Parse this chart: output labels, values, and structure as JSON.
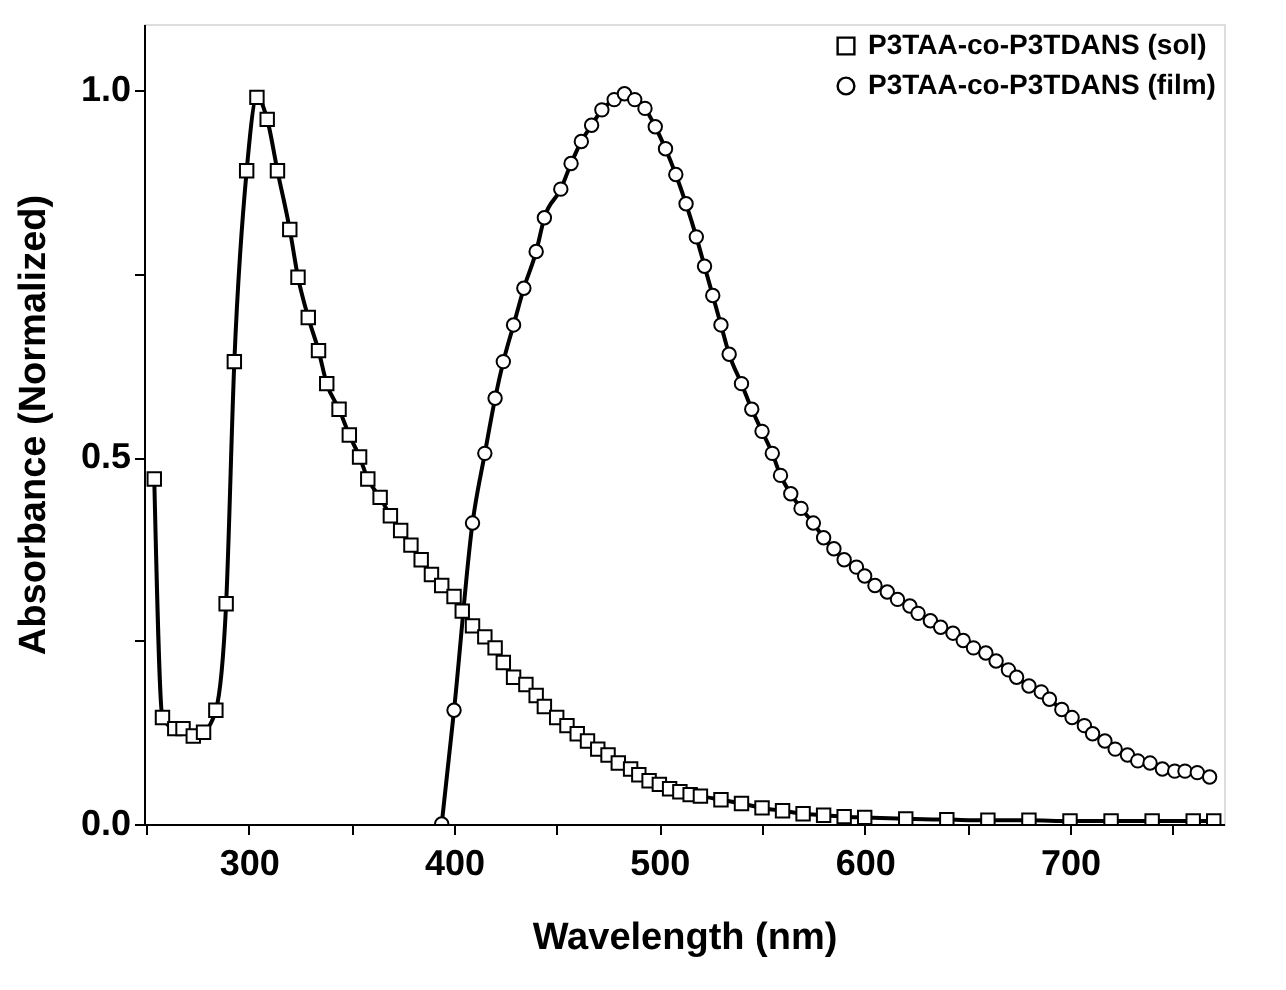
{
  "chart_data": {
    "type": "line",
    "xlabel": "Wavelength (nm)",
    "ylabel": "Absorbance (Normalized)",
    "xlim": [
      249,
      775
    ],
    "ylim": [
      0,
      1.09
    ],
    "xticks": [
      {
        "value": 250,
        "label": null
      },
      300,
      {
        "value": 350,
        "label": null
      },
      400,
      {
        "value": 450,
        "label": null
      },
      500,
      {
        "value": 550,
        "label": null
      },
      600,
      {
        "value": 650,
        "label": null
      },
      700,
      {
        "value": 750,
        "label": null
      }
    ],
    "yticks": [
      {
        "value": 0,
        "label": "0.0"
      },
      {
        "value": 0.25,
        "label": null
      },
      {
        "value": 0.5,
        "label": "0.5"
      },
      {
        "value": 0.75,
        "label": null
      },
      {
        "value": 1,
        "label": "1.0"
      }
    ],
    "grid": false,
    "legend": "top right",
    "series": [
      {
        "name": "P3TAA-co-P3TDANS (sol)",
        "color": "#000000",
        "marker": "square",
        "x": [
          254,
          258,
          264,
          268,
          273,
          278,
          284,
          289,
          293,
          299,
          304,
          309,
          314,
          320,
          324,
          329,
          334,
          338,
          344,
          349,
          354,
          358,
          364,
          369,
          374,
          379,
          384,
          389,
          394,
          400,
          404,
          409,
          415,
          420,
          424,
          429,
          435,
          440,
          444,
          450,
          455,
          460,
          465,
          470,
          475,
          480,
          486,
          490,
          495,
          500,
          505,
          510,
          515,
          520,
          530,
          540,
          550,
          560,
          570,
          580,
          590,
          600,
          620,
          640,
          660,
          680,
          700,
          720,
          740,
          760,
          770
        ],
        "values": [
          0.47,
          0.145,
          0.13,
          0.13,
          0.12,
          0.125,
          0.155,
          0.3,
          0.63,
          0.89,
          0.99,
          0.96,
          0.89,
          0.81,
          0.745,
          0.69,
          0.645,
          0.6,
          0.565,
          0.53,
          0.5,
          0.47,
          0.445,
          0.42,
          0.4,
          0.38,
          0.36,
          0.34,
          0.325,
          0.31,
          0.29,
          0.27,
          0.255,
          0.24,
          0.22,
          0.2,
          0.19,
          0.175,
          0.16,
          0.145,
          0.134,
          0.123,
          0.113,
          0.102,
          0.094,
          0.083,
          0.075,
          0.067,
          0.059,
          0.054,
          0.048,
          0.044,
          0.04,
          0.038,
          0.033,
          0.028,
          0.022,
          0.018,
          0.014,
          0.012,
          0.01,
          0.009,
          0.007,
          0.006,
          0.005,
          0.005,
          0.004,
          0.004,
          0.004,
          0.004,
          0.004
        ]
      },
      {
        "name": "P3TAA-co-P3TDANS (film)",
        "color": "#000000",
        "marker": "circle",
        "x": [
          394,
          400,
          409,
          415,
          420,
          424,
          429,
          434,
          440,
          444,
          452,
          457,
          462,
          467,
          472,
          478,
          483,
          488,
          493,
          498,
          503,
          508,
          513,
          518,
          522,
          526,
          530,
          534,
          540,
          545,
          550,
          555,
          559,
          564,
          569,
          575,
          580,
          585,
          590,
          596,
          600,
          605,
          611,
          616,
          622,
          626,
          632,
          637,
          643,
          648,
          653,
          659,
          664,
          670,
          674,
          680,
          686,
          690,
          696,
          701,
          707,
          711,
          717,
          722,
          728,
          733,
          739,
          745,
          751,
          756,
          762,
          768
        ],
        "values": [
          0,
          0.155,
          0.41,
          0.505,
          0.58,
          0.63,
          0.68,
          0.73,
          0.78,
          0.826,
          0.865,
          0.9,
          0.93,
          0.952,
          0.973,
          0.987,
          0.995,
          0.987,
          0.975,
          0.95,
          0.92,
          0.885,
          0.845,
          0.8,
          0.76,
          0.72,
          0.68,
          0.64,
          0.6,
          0.565,
          0.535,
          0.505,
          0.475,
          0.45,
          0.43,
          0.41,
          0.39,
          0.375,
          0.36,
          0.35,
          0.338,
          0.325,
          0.316,
          0.306,
          0.297,
          0.287,
          0.277,
          0.268,
          0.26,
          0.25,
          0.24,
          0.233,
          0.222,
          0.21,
          0.2,
          0.188,
          0.18,
          0.17,
          0.156,
          0.145,
          0.134,
          0.123,
          0.113,
          0.102,
          0.094,
          0.086,
          0.083,
          0.075,
          0.072,
          0.072,
          0.07,
          0.064
        ]
      }
    ]
  }
}
